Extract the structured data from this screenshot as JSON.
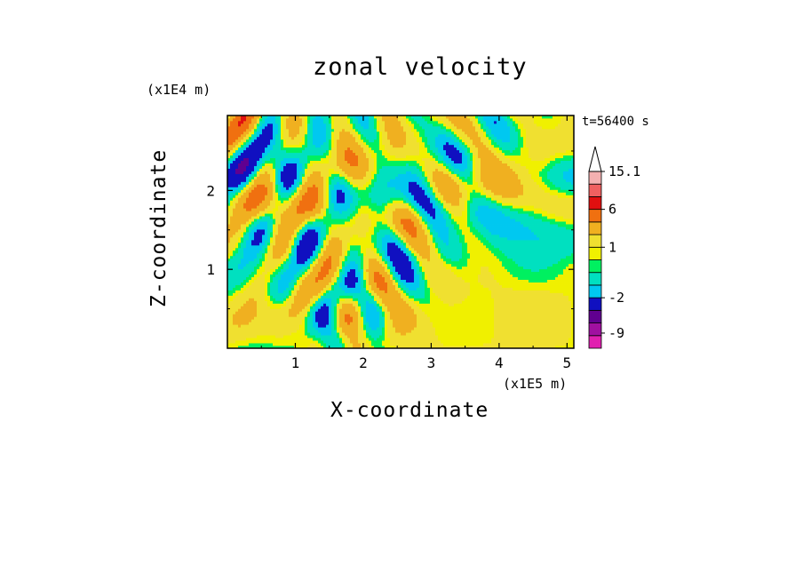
{
  "chart_data": {
    "type": "heatmap",
    "title": "zonal velocity",
    "xlabel": "X-coordinate",
    "ylabel": "Z-coordinate",
    "x_unit_label": "(x1E5 m)",
    "y_unit_label": "(x1E4 m)",
    "time_label": "t=56400 s",
    "x_ticks": [
      "1",
      "2",
      "3",
      "4",
      "5"
    ],
    "y_ticks": [
      "1",
      "2"
    ],
    "xlim": [
      0,
      5.1
    ],
    "ylim": [
      0,
      2.95
    ],
    "colorbar": {
      "labels": [
        "15.1",
        "6",
        "1",
        "-2",
        "-9"
      ],
      "bands": [
        {
          "from": -12.5,
          "to": -9.5,
          "color": "#e020b0"
        },
        {
          "from": -9.5,
          "to": -7,
          "color": "#a010a0"
        },
        {
          "from": -7,
          "to": -4.5,
          "color": "#600090"
        },
        {
          "from": -4.5,
          "to": -2,
          "color": "#1010c0"
        },
        {
          "from": -2,
          "to": -1,
          "color": "#00c8f0"
        },
        {
          "from": -1,
          "to": 0,
          "color": "#00e0c0"
        },
        {
          "from": 0,
          "to": 0.5,
          "color": "#00f060"
        },
        {
          "from": 0.5,
          "to": 1,
          "color": "#f0f000"
        },
        {
          "from": 1,
          "to": 2,
          "color": "#f0e030"
        },
        {
          "from": 2,
          "to": 4,
          "color": "#f0b020"
        },
        {
          "from": 4,
          "to": 6,
          "color": "#f07010"
        },
        {
          "from": 6,
          "to": 9,
          "color": "#e01010"
        },
        {
          "from": 9,
          "to": 12,
          "color": "#f06060"
        },
        {
          "from": 12,
          "to": 15.1,
          "color": "#f4b0b0"
        },
        {
          "from": 15.1,
          "to": 18,
          "color": "#ffffff"
        }
      ]
    }
  }
}
